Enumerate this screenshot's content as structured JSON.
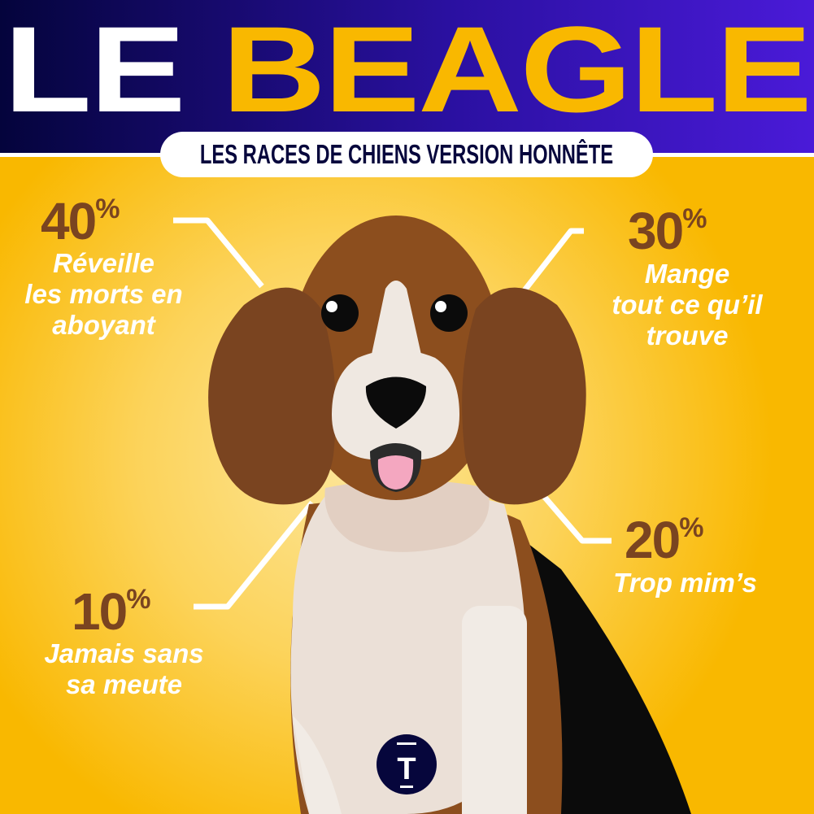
{
  "header": {
    "title_part1": "LE",
    "title_part2": "BEAGLE",
    "subtitle": "LES RACES DE CHIENS VERSION HONNÊTE"
  },
  "stats": [
    {
      "value": "40",
      "unit": "%",
      "label_lines": [
        "Réveille",
        "les morts en",
        "aboyant"
      ]
    },
    {
      "value": "30",
      "unit": "%",
      "label_lines": [
        "Mange",
        "tout ce qu’il",
        "trouve"
      ]
    },
    {
      "value": "20",
      "unit": "%",
      "label_lines": [
        "Trop mim’s"
      ]
    },
    {
      "value": "10",
      "unit": "%",
      "label_lines": [
        "Jamais sans",
        "sa meute"
      ]
    }
  ],
  "logo": {
    "letter": "T"
  },
  "colors": {
    "header_dark": "#04043c",
    "header_light": "#4a1ad8",
    "accent_yellow": "#f9b800",
    "stat_brown": "#7a4420",
    "navy": "#06063c"
  }
}
